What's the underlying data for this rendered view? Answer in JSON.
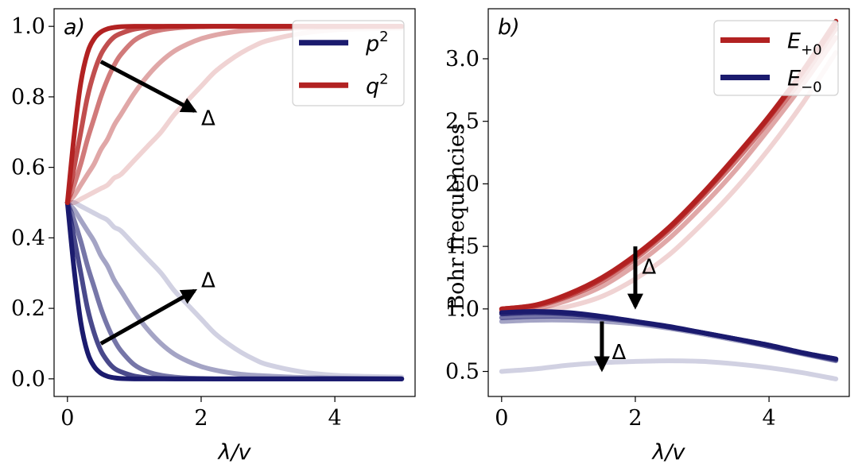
{
  "chart_data": [
    {
      "type": "line",
      "panel_label": "a)",
      "xlabel": "λ/v",
      "ylabel": "",
      "xlim": [
        -0.2,
        5.2
      ],
      "ylim": [
        -0.05,
        1.05
      ],
      "xticks": [
        0,
        2,
        4
      ],
      "yticks": [
        0.0,
        0.2,
        0.4,
        0.6,
        0.8,
        1.0
      ],
      "xtick_labels": [
        "0",
        "2",
        "4"
      ],
      "ytick_labels": [
        "0.0",
        "0.2",
        "0.4",
        "0.6",
        "0.8",
        "1.0"
      ],
      "legend": {
        "placement": "top-right",
        "entries": [
          {
            "label_base": "p",
            "label_sup": "2",
            "color": "#1b1b6e"
          },
          {
            "label_base": "q",
            "label_sup": "2",
            "color": "#b22222"
          }
        ]
      },
      "annotations": [
        {
          "text": "Δ",
          "arrow_from": [
            0.5,
            0.9
          ],
          "arrow_to": [
            1.9,
            0.76
          ],
          "text_at": [
            2.0,
            0.72
          ]
        },
        {
          "text": "Δ",
          "arrow_from": [
            0.5,
            0.1
          ],
          "arrow_to": [
            1.9,
            0.25
          ],
          "text_at": [
            2.0,
            0.26
          ]
        }
      ],
      "x": [
        0,
        0.1,
        0.2,
        0.3,
        0.4,
        0.5,
        0.6,
        0.7,
        0.8,
        1.0,
        1.2,
        1.4,
        1.6,
        1.8,
        2.0,
        2.2,
        2.4,
        2.6,
        2.8,
        3.0,
        3.5,
        4.0,
        4.5,
        5.0
      ],
      "series": [
        {
          "color": "#1b1b6e",
          "opacity": 1.0,
          "values": [
            0.5,
            0.31,
            0.16,
            0.075,
            0.035,
            0.016,
            0.007,
            0.003,
            0.001,
            0,
            0,
            0,
            0,
            0,
            0,
            0,
            0,
            0,
            0,
            0,
            0,
            0,
            0,
            0
          ]
        },
        {
          "color": "#1b1b6e",
          "opacity": 0.8,
          "values": [
            0.5,
            0.4,
            0.3,
            0.2,
            0.13,
            0.08,
            0.05,
            0.03,
            0.02,
            0.008,
            0.003,
            0.001,
            0,
            0,
            0,
            0,
            0,
            0,
            0,
            0,
            0,
            0,
            0,
            0
          ]
        },
        {
          "color": "#1b1b6e",
          "opacity": 0.6,
          "values": [
            0.5,
            0.45,
            0.39,
            0.32,
            0.26,
            0.2,
            0.15,
            0.11,
            0.08,
            0.04,
            0.02,
            0.01,
            0.005,
            0.002,
            0.001,
            0,
            0,
            0,
            0,
            0,
            0,
            0,
            0,
            0
          ]
        },
        {
          "color": "#1b1b6e",
          "opacity": 0.4,
          "values": [
            0.5,
            0.48,
            0.45,
            0.42,
            0.39,
            0.35,
            0.32,
            0.28,
            0.25,
            0.19,
            0.14,
            0.1,
            0.07,
            0.05,
            0.035,
            0.025,
            0.018,
            0.013,
            0.01,
            0.008,
            0.004,
            0.002,
            0.001,
            0
          ]
        },
        {
          "color": "#1b1b6e",
          "opacity": 0.2,
          "values": [
            0.5,
            0.5,
            0.49,
            0.48,
            0.47,
            0.46,
            0.45,
            0.43,
            0.42,
            0.38,
            0.34,
            0.3,
            0.25,
            0.21,
            0.17,
            0.13,
            0.1,
            0.075,
            0.055,
            0.04,
            0.02,
            0.01,
            0.007,
            0.005
          ]
        },
        {
          "color": "#b22222",
          "opacity": 1.0,
          "values": [
            0.5,
            0.69,
            0.84,
            0.925,
            0.965,
            0.984,
            0.993,
            0.997,
            0.999,
            1,
            1,
            1,
            1,
            1,
            1,
            1,
            1,
            1,
            1,
            1,
            1,
            1,
            1,
            1
          ]
        },
        {
          "color": "#b22222",
          "opacity": 0.8,
          "values": [
            0.5,
            0.6,
            0.7,
            0.8,
            0.87,
            0.92,
            0.95,
            0.97,
            0.98,
            0.992,
            0.997,
            0.999,
            1,
            1,
            1,
            1,
            1,
            1,
            1,
            1,
            1,
            1,
            1,
            1
          ]
        },
        {
          "color": "#b22222",
          "opacity": 0.6,
          "values": [
            0.5,
            0.55,
            0.61,
            0.68,
            0.74,
            0.8,
            0.85,
            0.89,
            0.92,
            0.96,
            0.98,
            0.99,
            0.995,
            0.998,
            0.999,
            1,
            1,
            1,
            1,
            1,
            1,
            1,
            1,
            1
          ]
        },
        {
          "color": "#b22222",
          "opacity": 0.4,
          "values": [
            0.5,
            0.52,
            0.55,
            0.58,
            0.61,
            0.65,
            0.68,
            0.72,
            0.75,
            0.81,
            0.86,
            0.9,
            0.93,
            0.95,
            0.965,
            0.975,
            0.982,
            0.987,
            0.99,
            0.992,
            0.996,
            0.998,
            0.999,
            1
          ]
        },
        {
          "color": "#b22222",
          "opacity": 0.2,
          "values": [
            0.5,
            0.5,
            0.51,
            0.52,
            0.53,
            0.54,
            0.55,
            0.57,
            0.58,
            0.62,
            0.66,
            0.7,
            0.75,
            0.79,
            0.83,
            0.87,
            0.9,
            0.925,
            0.945,
            0.96,
            0.98,
            0.99,
            0.993,
            0.995
          ]
        }
      ]
    },
    {
      "type": "line",
      "panel_label": "b)",
      "xlabel": "λ/v",
      "ylabel": "Bohr frequencies",
      "xlim": [
        -0.2,
        5.2
      ],
      "ylim": [
        0.3,
        3.4
      ],
      "xticks": [
        0,
        2,
        4
      ],
      "yticks": [
        0.5,
        1.0,
        1.5,
        2.0,
        2.5,
        3.0
      ],
      "xtick_labels": [
        "0",
        "2",
        "4"
      ],
      "ytick_labels": [
        "0.5",
        "1.0",
        "1.5",
        "2.0",
        "2.5",
        "3.0"
      ],
      "legend": {
        "placement": "top-right",
        "entries": [
          {
            "label_base": "E",
            "label_sub": "+0",
            "color": "#b22222"
          },
          {
            "label_base": "E",
            "label_sub": "−0",
            "color": "#1b1b6e"
          }
        ]
      },
      "annotations": [
        {
          "text": "Δ",
          "arrow_from": [
            2.0,
            1.5
          ],
          "arrow_to": [
            2.0,
            1.02
          ],
          "text_at": [
            2.1,
            1.28
          ]
        },
        {
          "text": "Δ",
          "arrow_from": [
            1.5,
            0.9
          ],
          "arrow_to": [
            1.5,
            0.52
          ],
          "text_at": [
            1.65,
            0.6
          ]
        }
      ],
      "x": [
        0,
        0.5,
        1.0,
        1.5,
        2.0,
        2.5,
        3.0,
        3.5,
        4.0,
        4.5,
        5.0
      ],
      "series": [
        {
          "color": "#b22222",
          "opacity": 1.0,
          "values": [
            1.0,
            1.03,
            1.12,
            1.25,
            1.43,
            1.65,
            1.92,
            2.22,
            2.54,
            2.9,
            3.3
          ]
        },
        {
          "color": "#b22222",
          "opacity": 0.8,
          "values": [
            1.0,
            1.03,
            1.11,
            1.24,
            1.42,
            1.64,
            1.91,
            2.21,
            2.53,
            2.89,
            3.28
          ]
        },
        {
          "color": "#b22222",
          "opacity": 0.6,
          "values": [
            0.99,
            1.02,
            1.1,
            1.22,
            1.4,
            1.62,
            1.89,
            2.18,
            2.5,
            2.85,
            3.24
          ]
        },
        {
          "color": "#b22222",
          "opacity": 0.4,
          "values": [
            0.98,
            1.0,
            1.07,
            1.18,
            1.35,
            1.56,
            1.82,
            2.11,
            2.44,
            2.79,
            3.17
          ]
        },
        {
          "color": "#b22222",
          "opacity": 0.2,
          "values": [
            0.97,
            0.98,
            1.02,
            1.1,
            1.24,
            1.43,
            1.68,
            1.96,
            2.28,
            2.64,
            3.05
          ]
        },
        {
          "color": "#1b1b6e",
          "opacity": 1.0,
          "values": [
            0.97,
            0.98,
            0.97,
            0.94,
            0.9,
            0.86,
            0.81,
            0.76,
            0.71,
            0.65,
            0.6
          ]
        },
        {
          "color": "#1b1b6e",
          "opacity": 0.8,
          "values": [
            0.96,
            0.97,
            0.96,
            0.935,
            0.9,
            0.855,
            0.81,
            0.76,
            0.71,
            0.65,
            0.6
          ]
        },
        {
          "color": "#1b1b6e",
          "opacity": 0.6,
          "values": [
            0.93,
            0.94,
            0.94,
            0.925,
            0.895,
            0.855,
            0.81,
            0.76,
            0.7,
            0.645,
            0.59
          ]
        },
        {
          "color": "#1b1b6e",
          "opacity": 0.4,
          "values": [
            0.9,
            0.91,
            0.91,
            0.9,
            0.88,
            0.845,
            0.8,
            0.75,
            0.7,
            0.64,
            0.585
          ]
        },
        {
          "color": "#1b1b6e",
          "opacity": 0.2,
          "values": [
            0.5,
            0.52,
            0.55,
            0.57,
            0.58,
            0.585,
            0.58,
            0.56,
            0.53,
            0.49,
            0.44
          ]
        }
      ]
    }
  ]
}
